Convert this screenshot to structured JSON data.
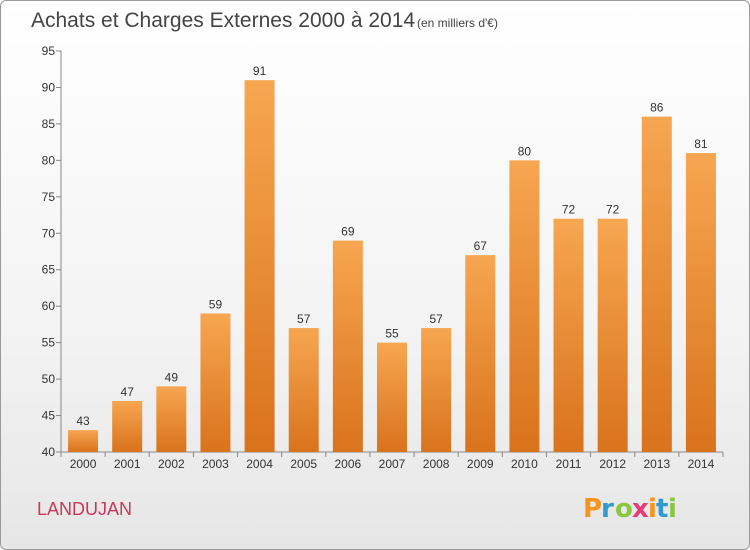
{
  "title": "Achats et Charges Externes 2000 à 2014",
  "unit": "(en milliers d'€)",
  "commune": "LANDUJAN",
  "logo": {
    "text": "Proxiti",
    "colors": [
      "#f7941d",
      "#2e9ad0",
      "#8cc63f",
      "#e63a7a",
      "#f7941d",
      "#2e9ad0",
      "#8cc63f"
    ]
  },
  "colors": {
    "bar_top": "#f7a651",
    "bar_bottom": "#d9731c",
    "axis": "#888888",
    "grid": "#cccccc"
  },
  "chart_data": {
    "type": "bar",
    "categories": [
      "2000",
      "2001",
      "2002",
      "2003",
      "2004",
      "2005",
      "2006",
      "2007",
      "2008",
      "2009",
      "2010",
      "2011",
      "2012",
      "2013",
      "2014"
    ],
    "values": [
      43,
      47,
      49,
      59,
      91,
      57,
      69,
      55,
      57,
      67,
      80,
      72,
      72,
      86,
      81
    ],
    "title": "Achats et Charges Externes 2000 à 2014",
    "xlabel": "",
    "ylabel": "",
    "ylim": [
      40,
      95
    ],
    "yticks": [
      40,
      45,
      50,
      55,
      60,
      65,
      70,
      75,
      80,
      85,
      90,
      95
    ],
    "grid": false,
    "legend": "none"
  }
}
